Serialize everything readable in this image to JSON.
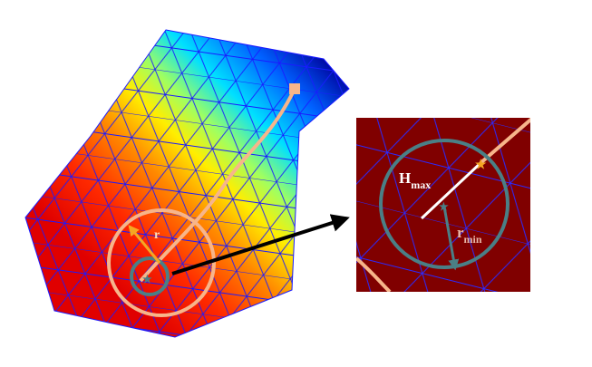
{
  "labels": {
    "radius": "r",
    "h_max": {
      "main": "H",
      "sub": "max"
    },
    "r_min": {
      "main": "r",
      "sub": "min"
    }
  }
}
